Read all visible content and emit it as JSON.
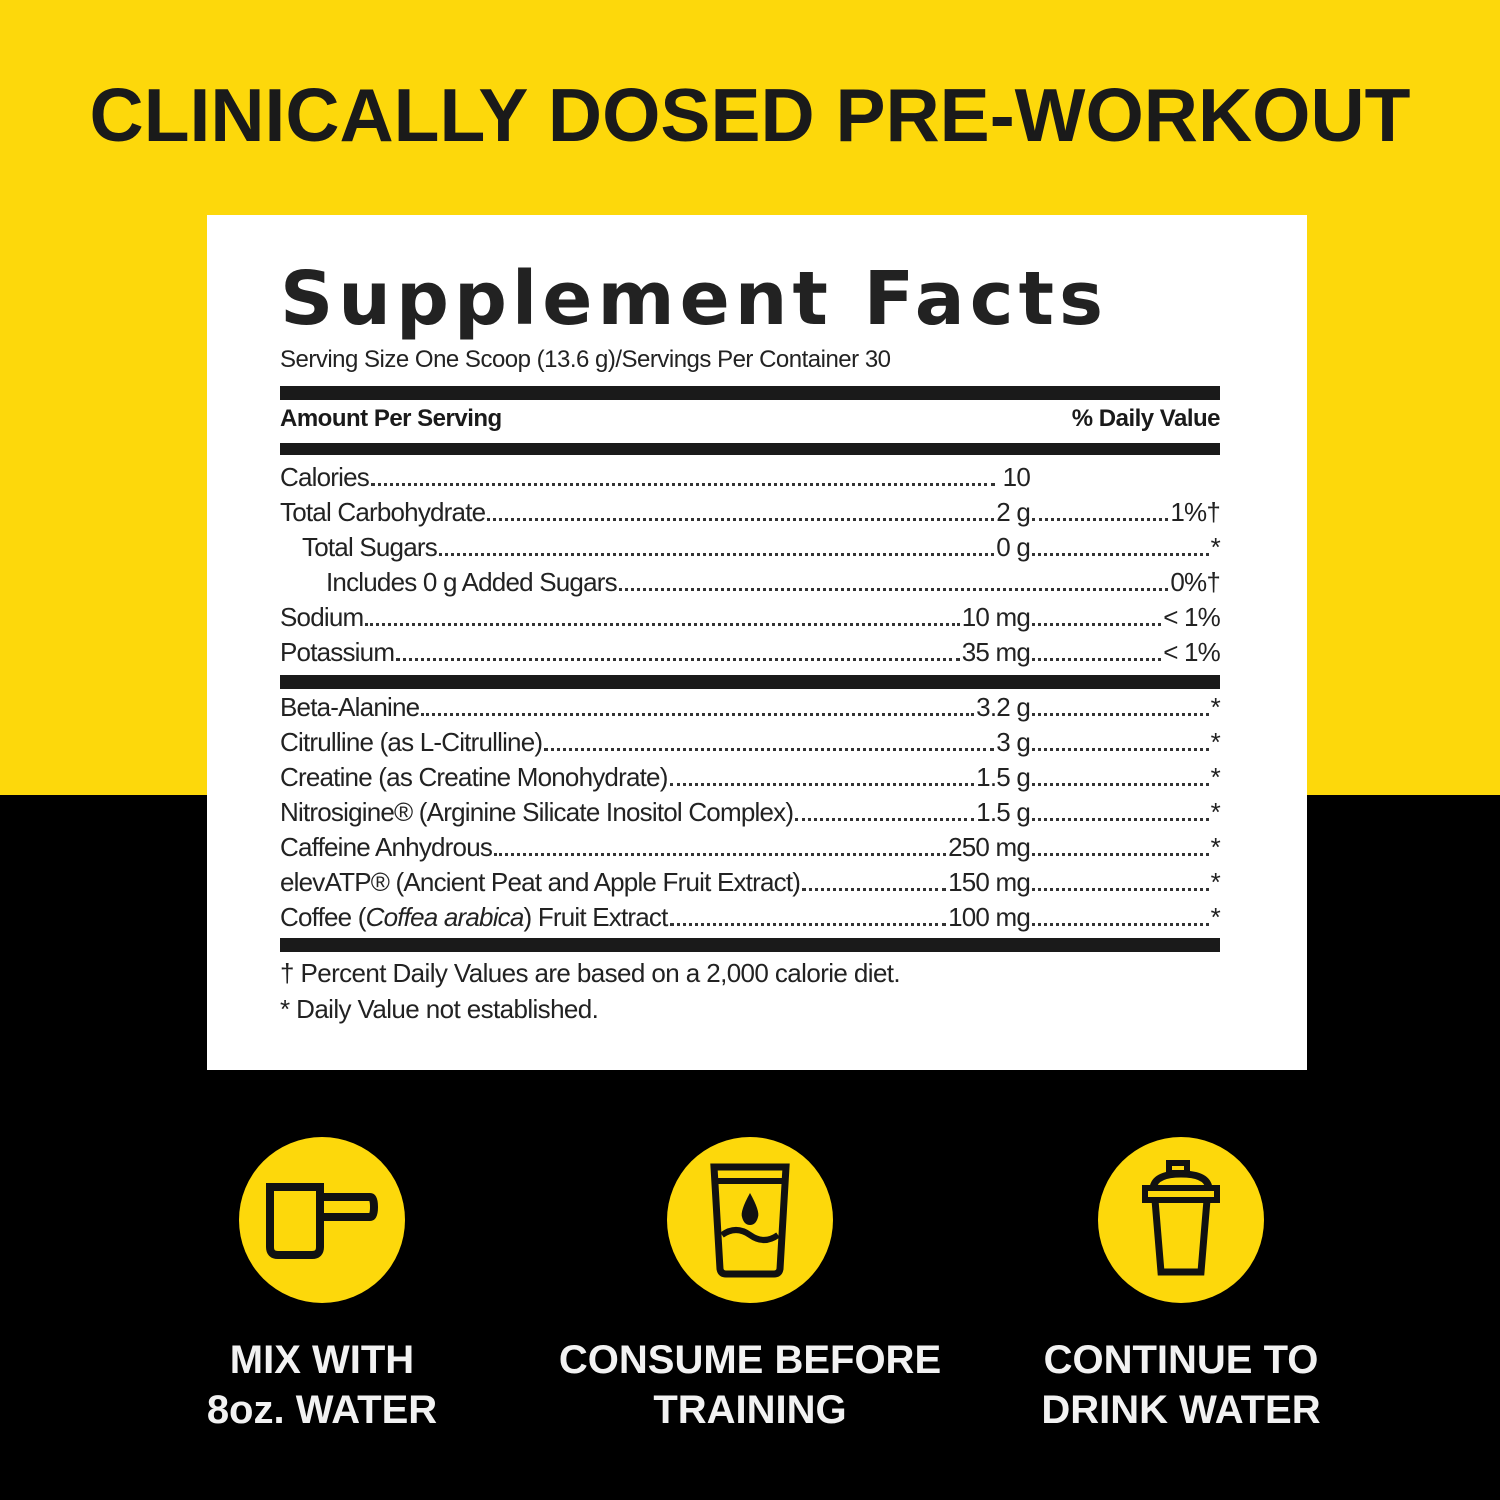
{
  "headline": "CLINICALLY DOSED PRE-WORKOUT",
  "colors": {
    "brand_yellow": "#FDD80B",
    "black": "#000000",
    "panel": "#FFFFFF"
  },
  "label": {
    "title": "Supplement Facts",
    "serving": "Serving Size One Scoop (13.6 g)/Servings Per Container 30",
    "amount_header": "Amount Per Serving",
    "dv_header": "% Daily Value",
    "nutrients": [
      {
        "name": "Calories",
        "amount": "10",
        "dv": ""
      },
      {
        "name": "Total Carbohydrate",
        "amount": "2 g",
        "dv": "1%†"
      },
      {
        "name": "Total Sugars",
        "amount": "0 g",
        "dv": "*"
      },
      {
        "name": "Includes 0 g Added Sugars",
        "amount": "",
        "dv": "0%†"
      },
      {
        "name": "Sodium",
        "amount": "10 mg",
        "dv": "< 1%"
      },
      {
        "name": "Potassium",
        "amount": "35 mg",
        "dv": "< 1%"
      }
    ],
    "ingredients": [
      {
        "name": "Beta-Alanine",
        "amount": "3.2 g",
        "dv": "*"
      },
      {
        "name": "Citrulline (as L-Citrulline) ",
        "amount": "3 g",
        "dv": "*"
      },
      {
        "name": "Creatine (as Creatine Monohydrate) ",
        "amount": "1.5 g",
        "dv": "*"
      },
      {
        "name": "Nitrosigine® (Arginine Silicate Inositol Complex) ",
        "amount": "1.5 g",
        "dv": "*"
      },
      {
        "name": "Caffeine Anhydrous",
        "amount": "250 mg",
        "dv": "*"
      },
      {
        "name": "elevATP® (Ancient Peat and Apple Fruit Extract)",
        "amount": "150 mg",
        "dv": "*"
      },
      {
        "name_prefix": "Coffee (",
        "name_italic": "Coffea arabica",
        "name_suffix": ") Fruit Extract",
        "amount": "100 mg",
        "dv": "*"
      }
    ],
    "footnote_1": "† Percent Daily Values are based on a 2,000 calorie diet.",
    "footnote_2": "* Daily Value not established."
  },
  "steps": [
    {
      "icon": "scoop-icon",
      "line1": "MIX WITH",
      "line2": "8oz. WATER"
    },
    {
      "icon": "water-glass-icon",
      "line1": "CONSUME BEFORE",
      "line2": "TRAINING"
    },
    {
      "icon": "shaker-bottle-icon",
      "line1": "CONTINUE TO",
      "line2": "DRINK WATER"
    }
  ]
}
